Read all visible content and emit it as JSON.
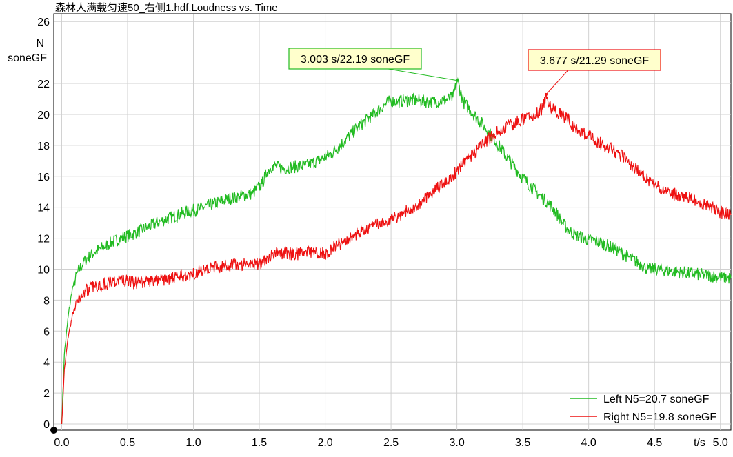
{
  "chart_data": {
    "type": "line",
    "title": "森林人满载匀速50_右侧1.hdf.Loudness vs. Time",
    "xlabel": "t/s",
    "ylabel_line1": "N",
    "ylabel_line2": "soneGF",
    "xlim": [
      -0.06,
      5.08
    ],
    "ylim": [
      -0.4,
      26.5
    ],
    "x_ticks": [
      "0.0",
      "0.5",
      "1.0",
      "1.5",
      "2.0",
      "2.5",
      "3.0",
      "3.5",
      "4.0",
      "4.5",
      "5.0"
    ],
    "y_ticks": [
      "0",
      "2",
      "4",
      "6",
      "8",
      "10",
      "12",
      "14",
      "16",
      "18",
      "20",
      "22",
      "26"
    ],
    "grid": true,
    "legend_position": "bottom-right",
    "series": [
      {
        "name": "Left N5=20.7 soneGF",
        "color": "#22bb22",
        "x": [
          0,
          0.02,
          0.05,
          0.08,
          0.12,
          0.18,
          0.25,
          0.35,
          0.45,
          0.55,
          0.65,
          0.75,
          0.85,
          0.95,
          1.05,
          1.15,
          1.25,
          1.35,
          1.45,
          1.52,
          1.56,
          1.6,
          1.68,
          1.75,
          1.85,
          1.95,
          2.05,
          2.15,
          2.25,
          2.35,
          2.45,
          2.5,
          2.55,
          2.6,
          2.7,
          2.8,
          2.9,
          2.97,
          3.003,
          3.05,
          3.1,
          3.2,
          3.3,
          3.4,
          3.5,
          3.6,
          3.7,
          3.75,
          3.8,
          3.85,
          3.9,
          4.0,
          4.1,
          4.2,
          4.3,
          4.4,
          4.45,
          4.5,
          4.6,
          4.7,
          4.8,
          4.9,
          5.0,
          5.08
        ],
        "y": [
          0,
          4.5,
          7.0,
          8.7,
          9.8,
          10.6,
          11.1,
          11.6,
          12.0,
          12.3,
          12.7,
          13.1,
          13.4,
          13.7,
          13.9,
          14.2,
          14.5,
          14.7,
          14.9,
          15.5,
          16.3,
          16.7,
          16.5,
          16.6,
          16.7,
          17.0,
          17.5,
          18.3,
          19.2,
          19.9,
          20.6,
          20.9,
          20.8,
          20.9,
          20.9,
          20.8,
          20.9,
          21.1,
          22.19,
          20.8,
          20.3,
          19.3,
          18.2,
          17.0,
          15.9,
          15.0,
          14.2,
          13.7,
          13.0,
          12.5,
          12.2,
          11.9,
          11.7,
          11.3,
          10.8,
          10.3,
          10.0,
          10.0,
          9.9,
          9.8,
          9.7,
          9.6,
          9.5,
          9.4
        ]
      },
      {
        "name": "Right N5=19.8 soneGF",
        "color": "#ee1111",
        "x": [
          0,
          0.02,
          0.05,
          0.08,
          0.12,
          0.18,
          0.25,
          0.35,
          0.45,
          0.55,
          0.65,
          0.75,
          0.85,
          0.95,
          1.05,
          1.15,
          1.25,
          1.35,
          1.45,
          1.5,
          1.55,
          1.6,
          1.7,
          1.8,
          1.9,
          2.0,
          2.1,
          2.2,
          2.3,
          2.4,
          2.5,
          2.6,
          2.7,
          2.8,
          2.9,
          3.0,
          3.1,
          3.2,
          3.3,
          3.4,
          3.5,
          3.6,
          3.65,
          3.677,
          3.72,
          3.8,
          3.9,
          4.0,
          4.1,
          4.2,
          4.3,
          4.4,
          4.5,
          4.6,
          4.7,
          4.8,
          4.9,
          5.0,
          5.08
        ],
        "y": [
          0,
          3.5,
          5.6,
          7.0,
          8.0,
          8.6,
          8.9,
          9.1,
          9.3,
          9.1,
          9.2,
          9.3,
          9.4,
          9.6,
          9.9,
          10.1,
          10.2,
          10.3,
          10.4,
          10.3,
          10.7,
          11.0,
          11.0,
          11.0,
          11.1,
          11.0,
          11.6,
          12.1,
          12.5,
          12.9,
          13.2,
          13.7,
          14.1,
          14.9,
          15.6,
          16.3,
          17.2,
          18.1,
          18.8,
          19.3,
          19.7,
          20.0,
          20.4,
          21.29,
          20.4,
          20.0,
          19.1,
          18.6,
          18.1,
          17.6,
          17.0,
          16.1,
          15.4,
          15.0,
          14.7,
          14.5,
          14.1,
          13.7,
          13.5
        ]
      }
    ],
    "annotations": [
      {
        "label": "3.003 s/22.19 soneGF",
        "x": 3.003,
        "y": 22.19,
        "series": 0,
        "fill": "#ffffcc",
        "border": "#22bb22"
      },
      {
        "label": "3.677 s/21.29 soneGF",
        "x": 3.677,
        "y": 21.29,
        "series": 1,
        "fill": "#ffffcc",
        "border": "#ee1111"
      }
    ]
  }
}
